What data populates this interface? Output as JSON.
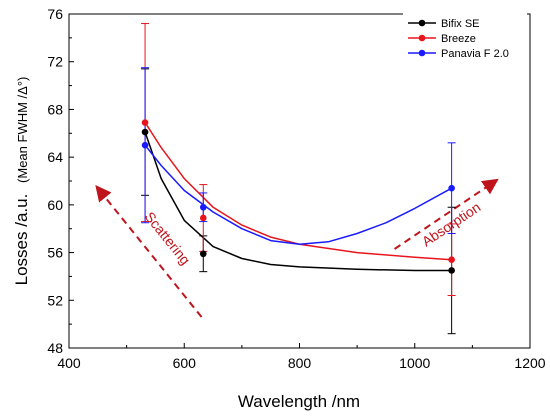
{
  "chart_data": {
    "type": "scatter",
    "title": "",
    "xlabel": "Wavelength /nm",
    "ylabel": {
      "main": "Losses /a.u.",
      "sub": "(Mean FWHM /Δ°)"
    },
    "xlim": [
      400,
      1200
    ],
    "ylim": [
      48,
      76
    ],
    "xticks": [
      400,
      600,
      800,
      1000,
      1200
    ],
    "yticks": [
      48,
      52,
      56,
      60,
      64,
      68,
      72,
      76
    ],
    "xtick_labels": [
      "400",
      "600",
      "800",
      "1000",
      "1200"
    ],
    "ytick_labels": [
      "48",
      "52",
      "56",
      "60",
      "64",
      "68",
      "72",
      "76"
    ],
    "grid": false,
    "legend_position": "top-right",
    "series": [
      {
        "name": "Bifix SE",
        "color": "#000000",
        "x": [
          532,
          633,
          1064
        ],
        "y": [
          66.1,
          55.9,
          54.5
        ],
        "err": [
          5.3,
          1.5,
          5.3
        ],
        "fit": [
          [
            532,
            66.1
          ],
          [
            560,
            62.2
          ],
          [
            600,
            58.7
          ],
          [
            650,
            56.5
          ],
          [
            700,
            55.5
          ],
          [
            750,
            55.0
          ],
          [
            800,
            54.8
          ],
          [
            900,
            54.6
          ],
          [
            1000,
            54.5
          ],
          [
            1064,
            54.5
          ]
        ]
      },
      {
        "name": "Breeze",
        "color": "#e8141c",
        "x": [
          532,
          633,
          1064
        ],
        "y": [
          66.9,
          58.9,
          55.4
        ],
        "err": [
          8.3,
          2.8,
          3.0
        ],
        "fit": [
          [
            532,
            66.9
          ],
          [
            560,
            64.8
          ],
          [
            600,
            62.2
          ],
          [
            650,
            59.8
          ],
          [
            700,
            58.3
          ],
          [
            750,
            57.3
          ],
          [
            800,
            56.7
          ],
          [
            900,
            56.0
          ],
          [
            1000,
            55.6
          ],
          [
            1064,
            55.4
          ]
        ]
      },
      {
        "name": "Panavia F 2.0",
        "color": "#1a1aff",
        "x": [
          532,
          633,
          1064
        ],
        "y": [
          65.0,
          59.8,
          61.4
        ],
        "err": [
          6.5,
          1.2,
          3.8
        ],
        "fit": [
          [
            532,
            65.0
          ],
          [
            560,
            63.3
          ],
          [
            600,
            61.2
          ],
          [
            650,
            59.4
          ],
          [
            700,
            58.0
          ],
          [
            750,
            57.0
          ],
          [
            800,
            56.7
          ],
          [
            850,
            56.9
          ],
          [
            900,
            57.6
          ],
          [
            950,
            58.5
          ],
          [
            1000,
            59.7
          ],
          [
            1064,
            61.4
          ]
        ]
      }
    ],
    "annotations": [
      {
        "text": "Scattering",
        "color": "#c0141c",
        "from": [
          630,
          50.6
        ],
        "to": [
          450,
          61.4
        ]
      },
      {
        "text": "Absorption",
        "color": "#c0141c",
        "from": [
          965,
          56.3
        ],
        "to": [
          1140,
          62.0
        ]
      }
    ]
  }
}
